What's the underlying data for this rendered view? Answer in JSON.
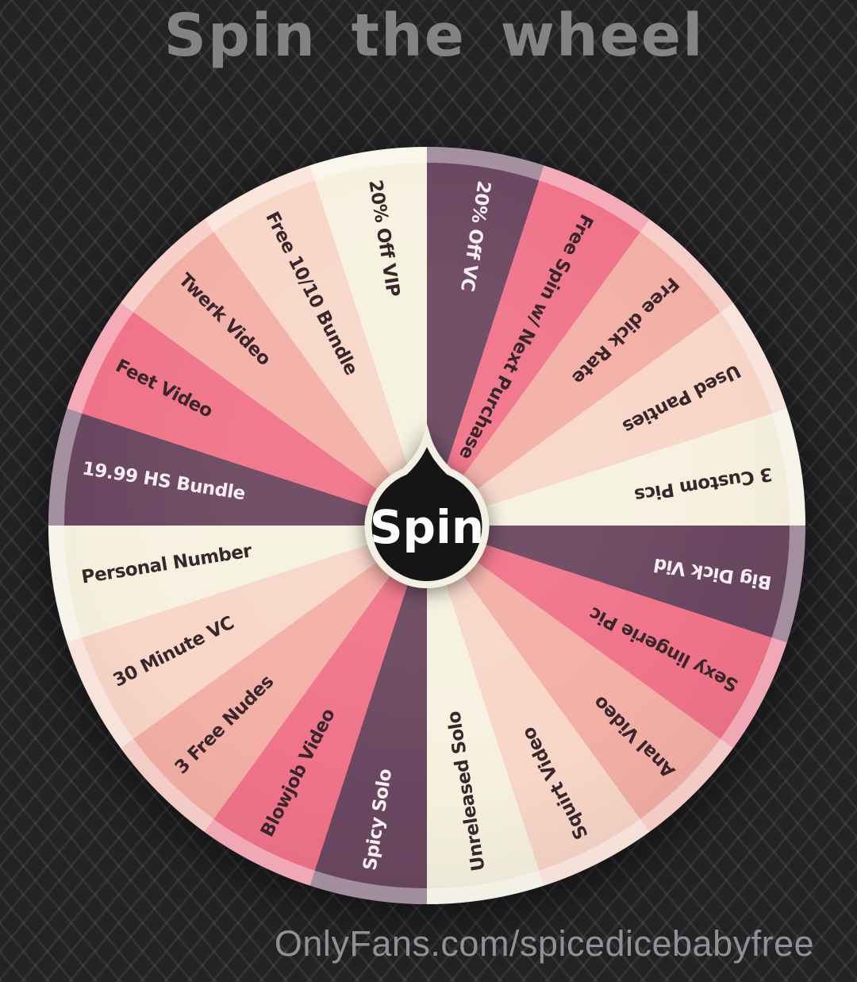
{
  "title": "Spin the wheel",
  "footer": {
    "url": "OnlyFans.com/spicedicebabyfree"
  },
  "colors": {
    "background_base": "#232326",
    "background_lattice": "rgba(255,255,255,0.07)",
    "title_gray": "#838383",
    "url_gray": "#909194",
    "center_button_fill": "#151515",
    "center_button_outline": "#f3efe3",
    "center_label_color": "#fdfdfd"
  },
  "wheel": {
    "center_label": "Spin",
    "rim_color": "rgba(255,255,255,0.40)",
    "palette": {
      "purple": "#6a4760",
      "rose": "#f07389",
      "salmon": "#f3afa6",
      "blush": "#f8d6c8",
      "cream": "#f6f1df"
    },
    "text_colors": {
      "dark": "#38262b",
      "light": "#f7eef2"
    },
    "segments": [
      {
        "label": "20% Off VC",
        "color": "purple",
        "text": "light"
      },
      {
        "label": "Free Spin w/ Next Purchase",
        "color": "rose",
        "text": "dark"
      },
      {
        "label": "Free dick Rate",
        "color": "salmon",
        "text": "dark"
      },
      {
        "label": "Used Panties",
        "color": "blush",
        "text": "dark"
      },
      {
        "label": "3 Custom Pics",
        "color": "cream",
        "text": "dark"
      },
      {
        "label": "Big Dick Vid",
        "color": "purple",
        "text": "light"
      },
      {
        "label": "Sexy lingerie Pic",
        "color": "rose",
        "text": "dark"
      },
      {
        "label": "Anal Video",
        "color": "salmon",
        "text": "dark"
      },
      {
        "label": "Squirt Video",
        "color": "blush",
        "text": "dark"
      },
      {
        "label": "Unreleased Solo",
        "color": "cream",
        "text": "dark"
      },
      {
        "label": "Spicy Solo",
        "color": "purple",
        "text": "light"
      },
      {
        "label": "Blowjob Video",
        "color": "rose",
        "text": "dark"
      },
      {
        "label": "3 Free Nudes",
        "color": "salmon",
        "text": "dark"
      },
      {
        "label": "30 Minute VC",
        "color": "blush",
        "text": "dark"
      },
      {
        "label": "Personal Number",
        "color": "cream",
        "text": "dark"
      },
      {
        "label": "19.99 HS Bundle",
        "color": "purple",
        "text": "light"
      },
      {
        "label": "Feet Video",
        "color": "rose",
        "text": "dark"
      },
      {
        "label": "Twerk Video",
        "color": "salmon",
        "text": "dark"
      },
      {
        "label": "Free 10/10 Bundle",
        "color": "blush",
        "text": "dark"
      },
      {
        "label": "20% Off VIP",
        "color": "cream",
        "text": "dark"
      }
    ]
  }
}
